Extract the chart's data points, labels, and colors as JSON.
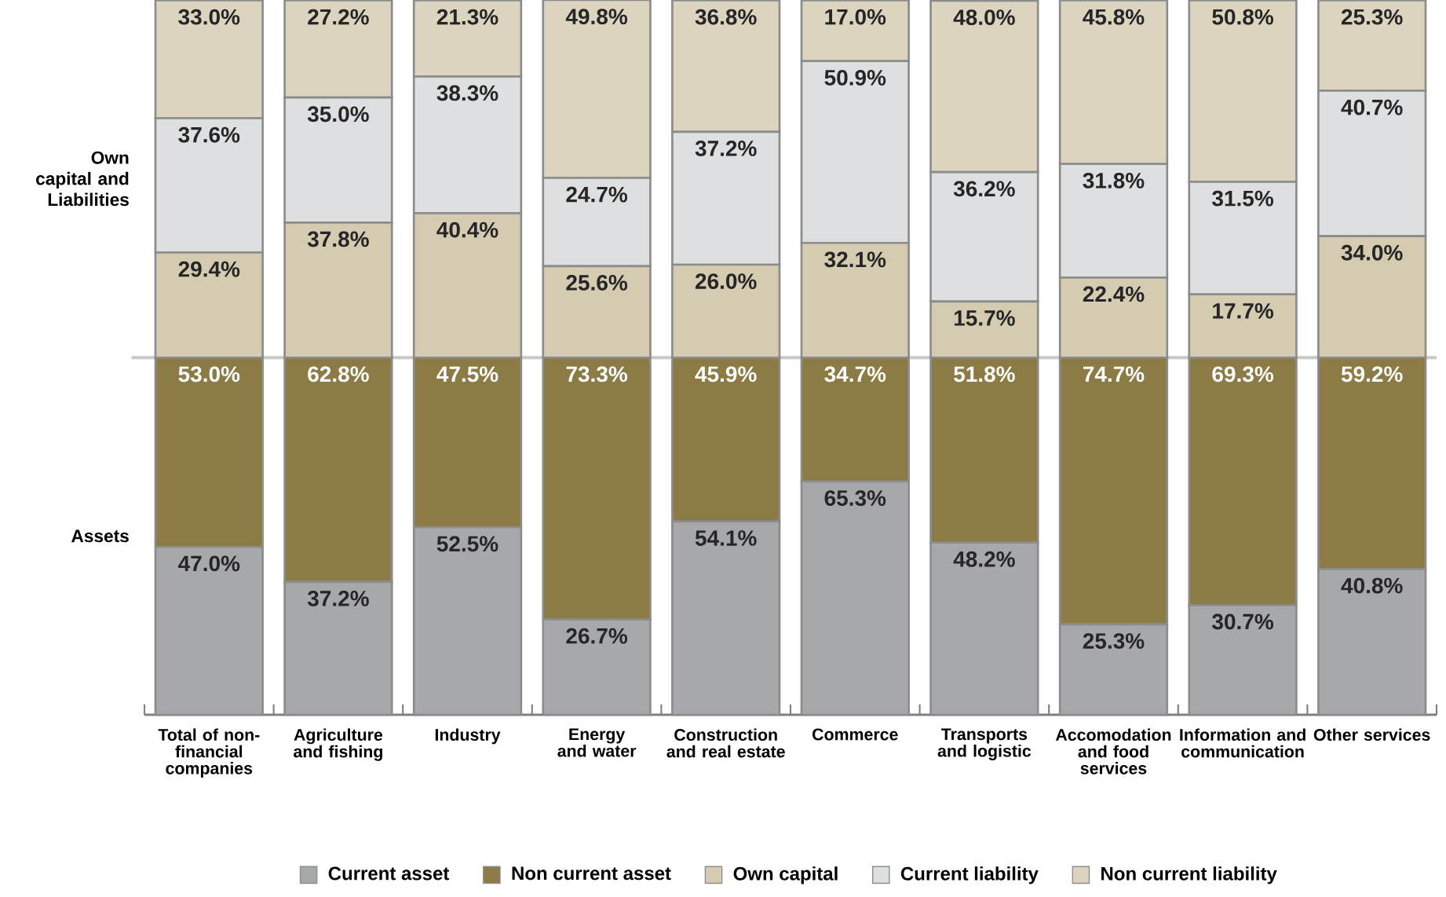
{
  "chart_data": {
    "type": "bar",
    "stacked": true,
    "categories": [
      "Total of non-financial companies",
      "Agriculture and fishing",
      "Industry",
      "Energy and water",
      "Construction and real estate",
      "Commerce",
      "Transports and logistic",
      "Accomodation and food services",
      "Information and communication",
      "Other services"
    ],
    "series": [
      {
        "name": "Current asset",
        "color": "#a7a8ac",
        "values": [
          47.0,
          37.2,
          52.5,
          26.7,
          54.1,
          65.3,
          48.2,
          25.3,
          30.7,
          40.8
        ],
        "value_labels": [
          "47.0%",
          "37.2%",
          "52.5%",
          "26.7%",
          "54.1%",
          "65.3%",
          "48.2%",
          "25.3%",
          "30.7%",
          "40.8%"
        ]
      },
      {
        "name": "Non current asset",
        "color": "#8d7b45",
        "values": [
          53.0,
          62.8,
          47.5,
          73.3,
          45.9,
          34.7,
          51.8,
          74.7,
          69.3,
          59.2
        ],
        "value_labels": [
          "53.0%",
          "62.8%",
          "47.5%",
          "73.3%",
          "45.9%",
          "34.7%",
          "51.8%",
          "74.7%",
          "69.3%",
          "59.2%"
        ]
      },
      {
        "name": "Own capital",
        "color": "#d5cbb1",
        "values": [
          29.4,
          37.8,
          40.4,
          25.6,
          26.0,
          32.1,
          15.7,
          22.4,
          17.7,
          34.0
        ],
        "value_labels": [
          "29.4%",
          "37.8%",
          "40.4%",
          "25.6%",
          "26.0%",
          "32.1%",
          "15.7%",
          "22.4%",
          "17.7%",
          "34.0%"
        ]
      },
      {
        "name": "Current liability",
        "color": "#dedfe1",
        "values": [
          37.6,
          35.0,
          38.3,
          24.7,
          37.2,
          50.9,
          36.2,
          31.8,
          31.5,
          40.7
        ],
        "value_labels": [
          "37.6%",
          "35.0%",
          "38.3%",
          "24.7%",
          "37.2%",
          "50.9%",
          "36.2%",
          "31.8%",
          "31.5%",
          "40.7%"
        ]
      },
      {
        "name": "Non current liability",
        "color": "#dcd4bf",
        "values": [
          33.0,
          27.2,
          21.3,
          49.8,
          36.8,
          17.0,
          48.0,
          45.8,
          50.8,
          25.3
        ],
        "value_labels": [
          "33.0%",
          "27.2%",
          "21.3%",
          "49.8%",
          "36.8%",
          "17.0%",
          "48.0%",
          "45.8%",
          "50.8%",
          "25.3%"
        ]
      }
    ],
    "ylim": [
      0,
      200.1
    ],
    "annotations": [
      "Own capital and Liabilities",
      "Assets"
    ],
    "ref_lines": [
      {
        "axis": "y",
        "value": 100,
        "color": "#c8c8c8"
      }
    ],
    "legend": "bottom",
    "marker": "square"
  }
}
